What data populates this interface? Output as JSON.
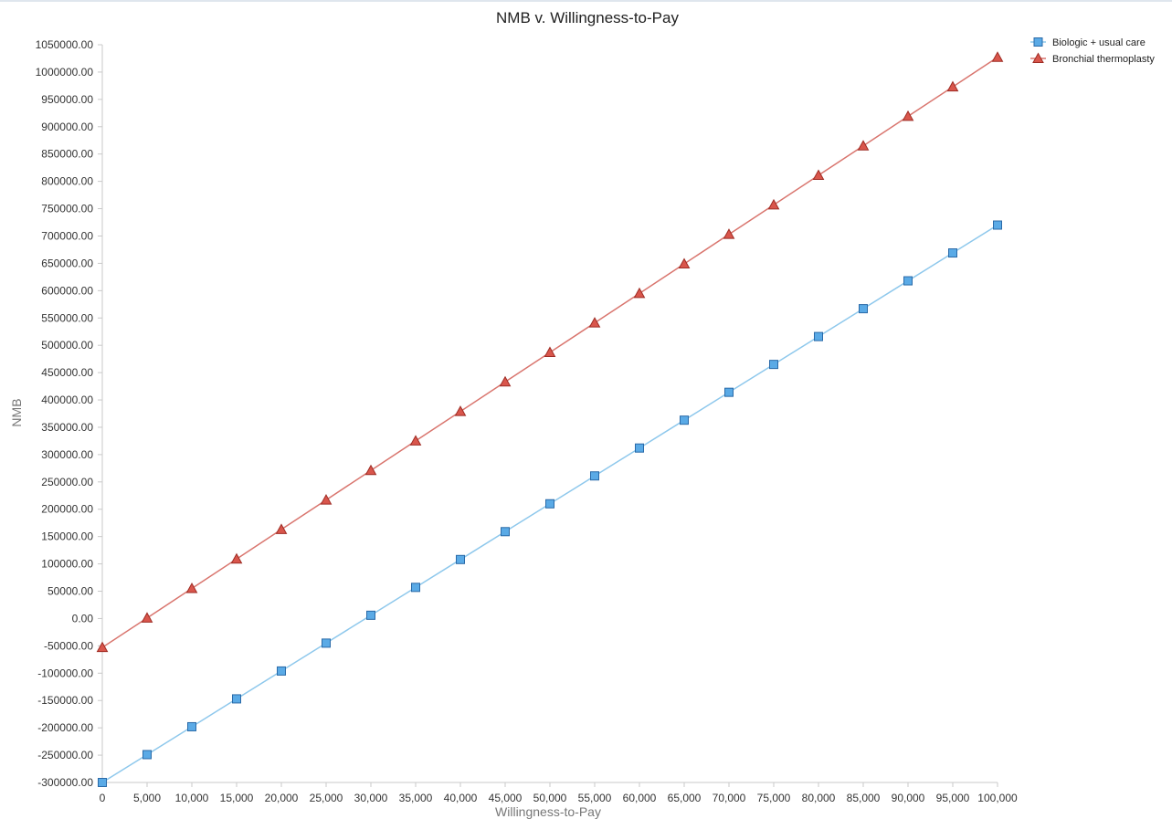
{
  "chart_data": {
    "type": "line",
    "title": "NMB v. Willingness-to-Pay",
    "xlabel": "Willingness-to-Pay",
    "ylabel": "NMB",
    "x": [
      0,
      5000,
      10000,
      15000,
      20000,
      25000,
      30000,
      35000,
      40000,
      45000,
      50000,
      55000,
      60000,
      65000,
      70000,
      75000,
      80000,
      85000,
      90000,
      95000,
      100000
    ],
    "xlim": [
      0,
      100000
    ],
    "ylim": [
      -300000,
      1050000
    ],
    "x_ticks": [
      "0",
      "5,000",
      "10,000",
      "15,000",
      "20,000",
      "25,000",
      "30,000",
      "35,000",
      "40,000",
      "45,000",
      "50,000",
      "55,000",
      "60,000",
      "65,000",
      "70,000",
      "75,000",
      "80,000",
      "85,000",
      "90,000",
      "95,000",
      "100,000"
    ],
    "y_ticks": [
      "1050000.00",
      "1000000.00",
      "950000.00",
      "900000.00",
      "850000.00",
      "800000.00",
      "750000.00",
      "700000.00",
      "650000.00",
      "600000.00",
      "550000.00",
      "500000.00",
      "450000.00",
      "400000.00",
      "350000.00",
      "300000.00",
      "250000.00",
      "200000.00",
      "150000.00",
      "100000.00",
      "50000.00",
      "0.00",
      "-50000.00",
      "-100000.00",
      "-150000.00",
      "-200000.00",
      "-250000.00",
      "-300000.00"
    ],
    "grid": false,
    "legend_position": "top-right",
    "series": [
      {
        "name": "Biologic + usual care",
        "marker": "square",
        "color": "#8ec8ec",
        "marker_fill": "#5aaae6",
        "marker_stroke": "#2a6aa8",
        "values": [
          -300000,
          -249000,
          -198000,
          -147000,
          -96000,
          -45000,
          6000,
          57000,
          108000,
          159000,
          210000,
          261000,
          312000,
          363000,
          414000,
          465000,
          516000,
          567000,
          618000,
          669000,
          720000
        ]
      },
      {
        "name": "Bronchial thermoplasty",
        "marker": "triangle",
        "color": "#d9756e",
        "marker_fill": "#d9564c",
        "marker_stroke": "#9e2c24",
        "values": [
          -53000,
          1000,
          55000,
          109000,
          163000,
          217000,
          271000,
          325000,
          379000,
          433000,
          487000,
          541000,
          595000,
          649000,
          703000,
          757000,
          811000,
          865000,
          919000,
          973000,
          1027000
        ]
      }
    ]
  }
}
